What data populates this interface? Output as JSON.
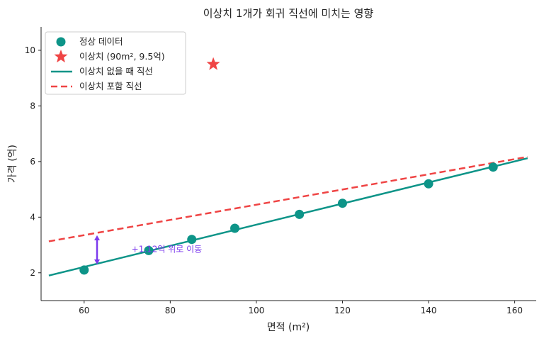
{
  "chart_data": {
    "type": "scatter",
    "title": "이상치 1개가 회귀 직선에 미치는 영향",
    "xlabel": "면적 (m²)",
    "ylabel": "가격 (억)",
    "xlim": [
      50,
      165
    ],
    "ylim": [
      1,
      10.84
    ],
    "xticks": [
      60,
      80,
      100,
      120,
      140,
      160
    ],
    "yticks": [
      2,
      4,
      6,
      8,
      10
    ],
    "grid": false,
    "legend_position": "top-left",
    "series": [
      {
        "name": "정상 데이터",
        "kind": "scatter",
        "color": "#0d9488",
        "x": [
          60,
          75,
          85,
          95,
          110,
          120,
          140,
          155
        ],
        "y": [
          2.1,
          2.8,
          3.2,
          3.6,
          4.1,
          4.5,
          5.2,
          5.8
        ]
      },
      {
        "name": "이상치 (90m², 9.5억)",
        "kind": "star",
        "color": "#ef4444",
        "x": [
          90
        ],
        "y": [
          9.5
        ]
      },
      {
        "name": "이상치 없을 때 직선",
        "kind": "line",
        "color": "#0d9488",
        "x": [
          51.8,
          163
        ],
        "y": [
          1.9,
          6.12
        ]
      },
      {
        "name": "이상치 포함 직선",
        "kind": "dashed-line",
        "color": "#ef4444",
        "x": [
          51.8,
          163
        ],
        "y": [
          3.13,
          6.17
        ]
      }
    ],
    "annotation": {
      "text": "+1.12억 위로 이동",
      "color": "#7c3aed",
      "arrow_x": 63,
      "arrow_from": 3.35,
      "arrow_to": 2.3,
      "text_x": 71,
      "text_y": 2.85
    }
  }
}
